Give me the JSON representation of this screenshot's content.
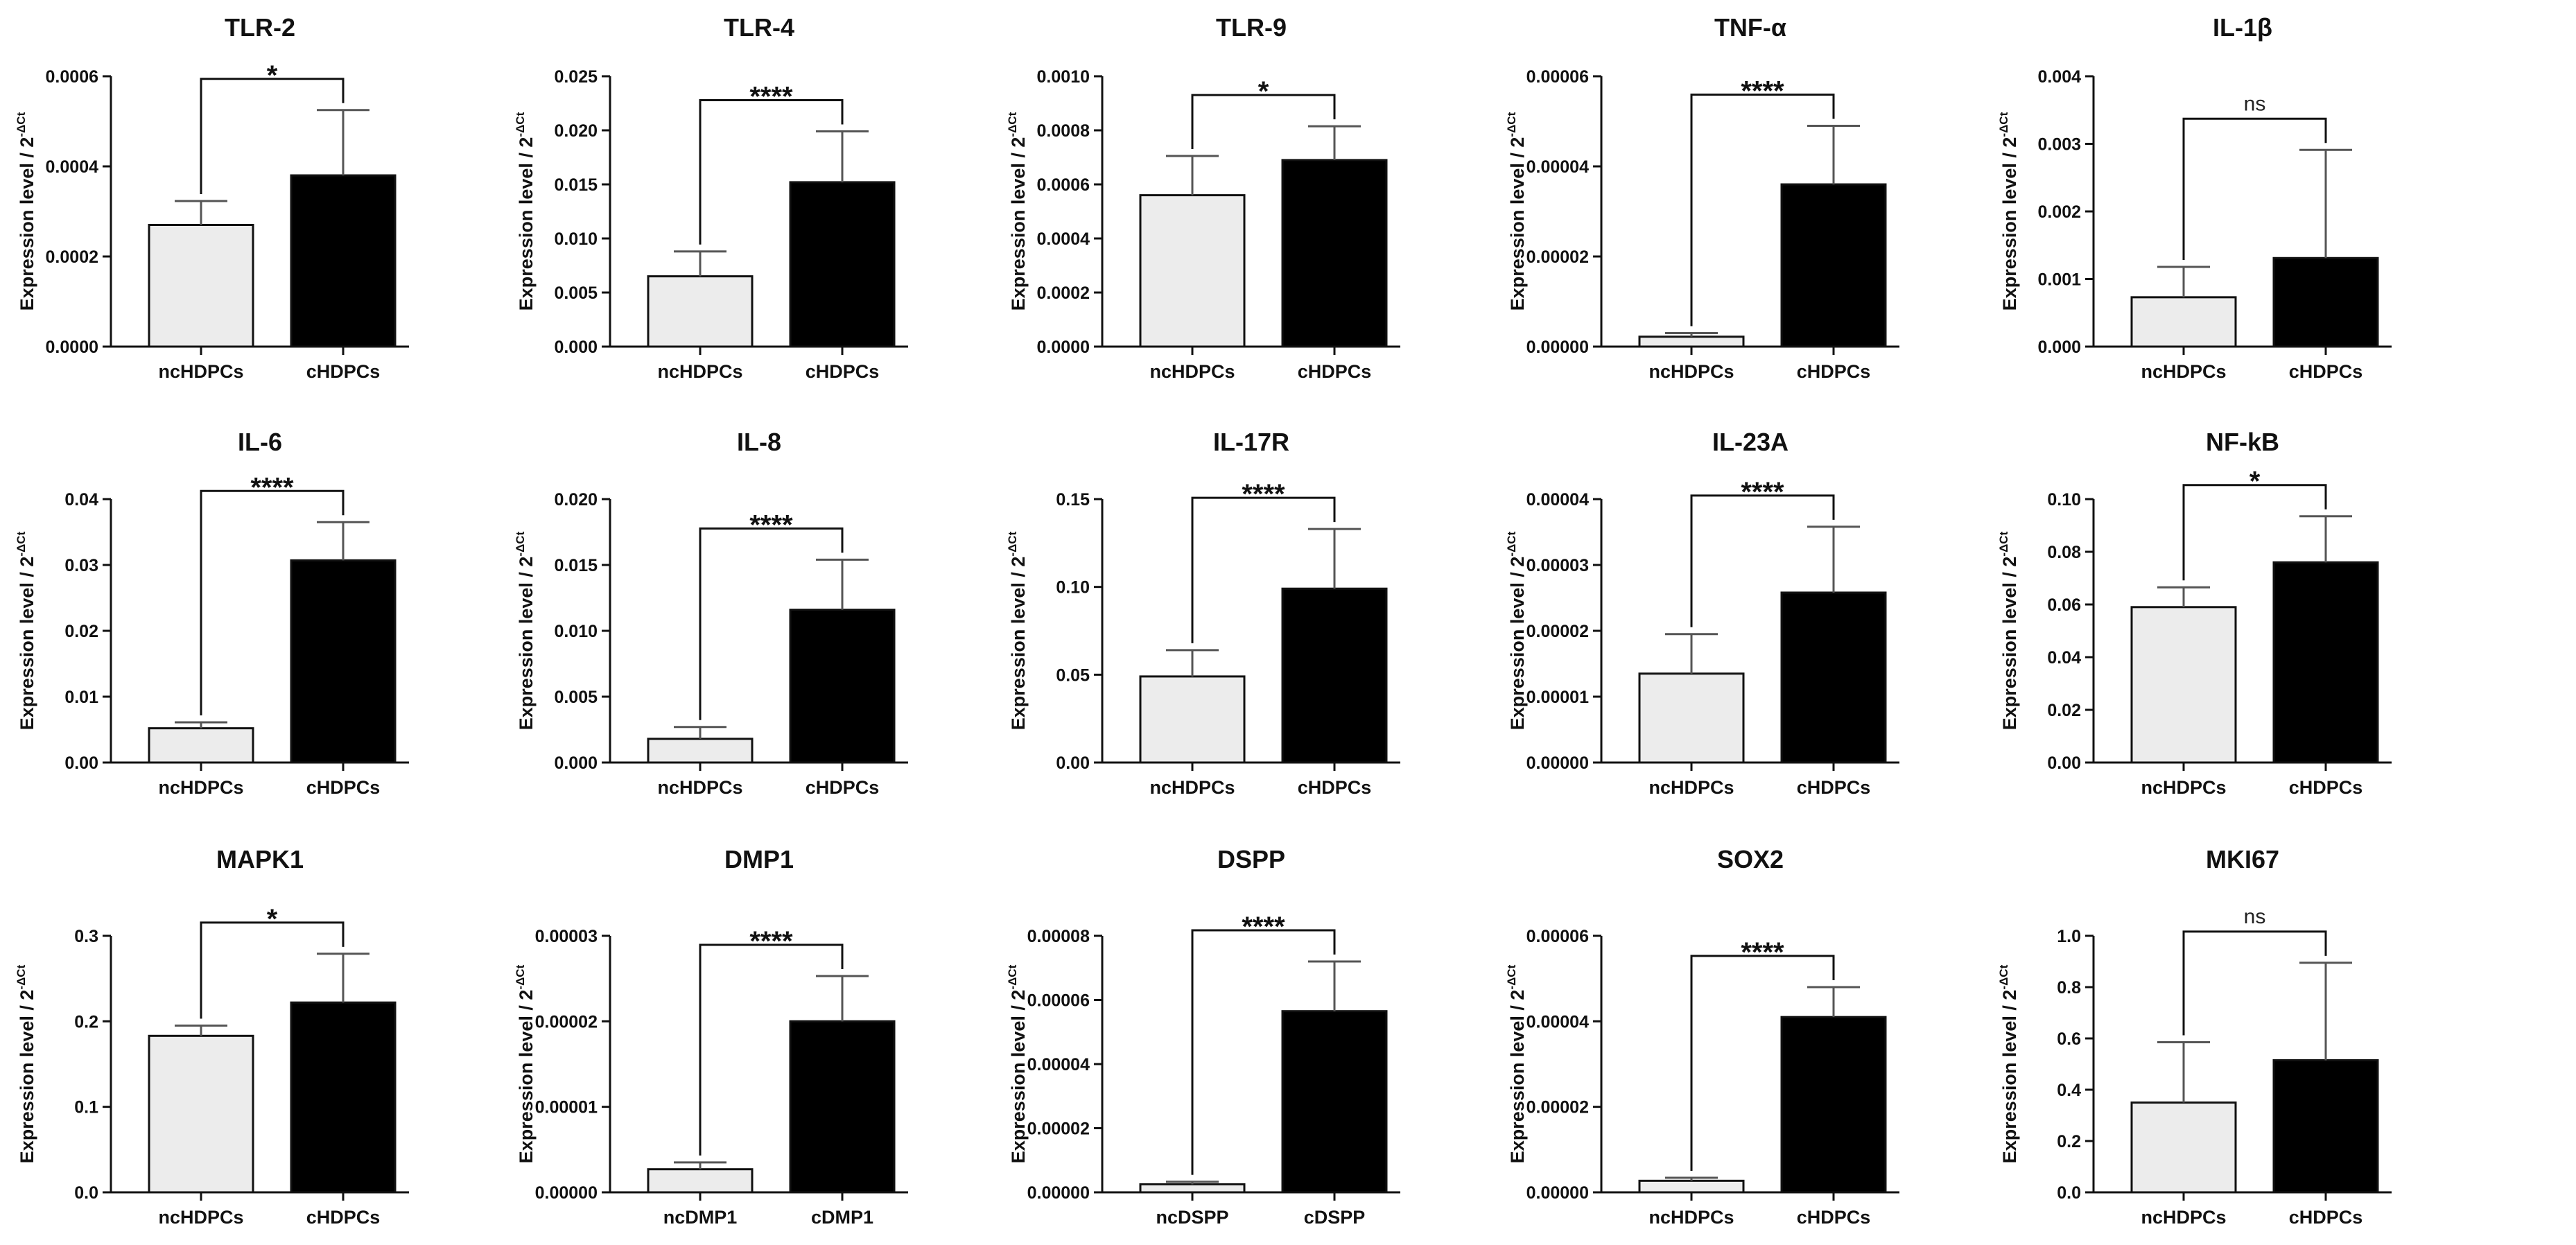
{
  "figure": {
    "ylabel_prefix": "Expression level / 2",
    "ylabel_exponent": "-ΔCt",
    "colors": {
      "control": "#ececec",
      "case": "#000000",
      "axis": "#111111"
    }
  },
  "chart_data": [
    {
      "type": "bar",
      "title": "TLR-2",
      "categories": [
        "ncHDPCs",
        "cHDPCs"
      ],
      "values": [
        0.00027,
        0.00038
      ],
      "errors": [
        5.3e-05,
        0.000145
      ],
      "yticks": [
        "0.0000",
        "0.0002",
        "0.0004",
        "0.0006"
      ],
      "ylim": [
        0,
        0.0006
      ],
      "significance": "*",
      "ylabel": "Expression level / 2-ΔCt"
    },
    {
      "type": "bar",
      "title": "TLR-4",
      "categories": [
        "ncHDPCs",
        "cHDPCs"
      ],
      "values": [
        0.0065,
        0.0152
      ],
      "errors": [
        0.0023,
        0.0047
      ],
      "yticks": [
        "0.000",
        "0.005",
        "0.010",
        "0.015",
        "0.020",
        "0.025"
      ],
      "ylim": [
        0,
        0.025
      ],
      "significance": "****",
      "ylabel": "Expression level / 2-ΔCt"
    },
    {
      "type": "bar",
      "title": "TLR-9",
      "categories": [
        "ncHDPCs",
        "cHDPCs"
      ],
      "values": [
        0.00056,
        0.00069
      ],
      "errors": [
        0.000145,
        0.000125
      ],
      "yticks": [
        "0.0000",
        "0.0002",
        "0.0004",
        "0.0006",
        "0.0008",
        "0.0010"
      ],
      "ylim": [
        0,
        0.001
      ],
      "significance": "*",
      "ylabel": "Expression level / 2-ΔCt"
    },
    {
      "type": "bar",
      "title": "TNF-α",
      "categories": [
        "ncHDPCs",
        "cHDPCs"
      ],
      "values": [
        2.2e-06,
        3.6e-05
      ],
      "errors": [
        8e-07,
        1.3e-05
      ],
      "yticks": [
        "0.00000",
        "0.00002",
        "0.00004",
        "0.00006"
      ],
      "ylim": [
        0,
        6e-05
      ],
      "significance": "****",
      "ylabel": "Expression level / 2-ΔCt"
    },
    {
      "type": "bar",
      "title": "IL-1β",
      "categories": [
        "ncHDPCs",
        "cHDPCs"
      ],
      "values": [
        0.00073,
        0.00131
      ],
      "errors": [
        0.00045,
        0.0016
      ],
      "yticks": [
        "0.000",
        "0.001",
        "0.002",
        "0.003",
        "0.004"
      ],
      "ylim": [
        0,
        0.004
      ],
      "significance": "ns",
      "ylabel": "Expression level / 2-ΔCt"
    },
    {
      "type": "bar",
      "title": "IL-6",
      "categories": [
        "ncHDPCs",
        "cHDPCs"
      ],
      "values": [
        0.0052,
        0.0307
      ],
      "errors": [
        0.0009,
        0.0058
      ],
      "yticks": [
        "0.00",
        "0.01",
        "0.02",
        "0.03",
        "0.04"
      ],
      "ylim": [
        0,
        0.04
      ],
      "significance": "****",
      "ylabel": "Expression level / 2-ΔCt"
    },
    {
      "type": "bar",
      "title": "IL-8",
      "categories": [
        "ncHDPCs",
        "cHDPCs"
      ],
      "values": [
        0.0018,
        0.0116
      ],
      "errors": [
        0.0009,
        0.0038
      ],
      "yticks": [
        "0.000",
        "0.005",
        "0.010",
        "0.015",
        "0.020"
      ],
      "ylim": [
        0,
        0.02
      ],
      "significance": "****",
      "ylabel": "Expression level / 2-ΔCt"
    },
    {
      "type": "bar",
      "title": "IL-17R",
      "categories": [
        "ncHDPCs",
        "cHDPCs"
      ],
      "values": [
        0.049,
        0.099
      ],
      "errors": [
        0.015,
        0.034
      ],
      "yticks": [
        "0.00",
        "0.05",
        "0.10",
        "0.15"
      ],
      "ylim": [
        0,
        0.15
      ],
      "significance": "****",
      "ylabel": "Expression level / 2-ΔCt"
    },
    {
      "type": "bar",
      "title": "IL-23A",
      "categories": [
        "ncHDPCs",
        "cHDPCs"
      ],
      "values": [
        1.35e-05,
        2.58e-05
      ],
      "errors": [
        6e-06,
        1e-05
      ],
      "yticks": [
        "0.00000",
        "0.00001",
        "0.00002",
        "0.00003",
        "0.00004"
      ],
      "ylim": [
        0,
        4e-05
      ],
      "significance": "****",
      "ylabel": "Expression level / 2-ΔCt"
    },
    {
      "type": "bar",
      "title": "NF-kB",
      "categories": [
        "ncHDPCs",
        "cHDPCs"
      ],
      "values": [
        0.059,
        0.076
      ],
      "errors": [
        0.0075,
        0.0175
      ],
      "yticks": [
        "0.00",
        "0.02",
        "0.04",
        "0.06",
        "0.08",
        "0.10"
      ],
      "ylim": [
        0,
        0.1
      ],
      "significance": "*",
      "ylabel": "Expression level / 2-ΔCt"
    },
    {
      "type": "bar",
      "title": "MAPK1",
      "categories": [
        "ncHDPCs",
        "cHDPCs"
      ],
      "values": [
        0.183,
        0.222
      ],
      "errors": [
        0.012,
        0.057
      ],
      "yticks": [
        "0.0",
        "0.1",
        "0.2",
        "0.3"
      ],
      "ylim": [
        0,
        0.3
      ],
      "significance": "*",
      "ylabel": "Expression level / 2-ΔCt"
    },
    {
      "type": "bar",
      "title": "DMP1",
      "categories": [
        "ncDMP1",
        "cDMP1"
      ],
      "values": [
        2.7e-06,
        2e-05
      ],
      "errors": [
        8e-07,
        5.3e-06
      ],
      "yticks": [
        "0.00000",
        "0.00001",
        "0.00002",
        "0.00003"
      ],
      "ylim": [
        0,
        3e-05
      ],
      "significance": "****",
      "ylabel": "Expression level / 2-ΔCt"
    },
    {
      "type": "bar",
      "title": "DSPP",
      "categories": [
        "ncDSPP",
        "cDSPP"
      ],
      "values": [
        2.5e-06,
        5.65e-05
      ],
      "errors": [
        8e-07,
        1.55e-05
      ],
      "yticks": [
        "0.00000",
        "0.00002",
        "0.00004",
        "0.00006",
        "0.00008"
      ],
      "ylim": [
        0,
        8e-05
      ],
      "significance": "****",
      "ylabel": "Expression level / 2-ΔCt"
    },
    {
      "type": "bar",
      "title": "SOX2",
      "categories": [
        "ncHDPCs",
        "cHDPCs"
      ],
      "values": [
        2.7e-06,
        4.1e-05
      ],
      "errors": [
        7e-07,
        7e-06
      ],
      "yticks": [
        "0.00000",
        "0.00002",
        "0.00004",
        "0.00006"
      ],
      "ylim": [
        0,
        6e-05
      ],
      "significance": "****",
      "ylabel": "Expression level / 2-ΔCt"
    },
    {
      "type": "bar",
      "title": "MKI67",
      "categories": [
        "ncHDPCs",
        "cHDPCs"
      ],
      "values": [
        0.35,
        0.515
      ],
      "errors": [
        0.235,
        0.38
      ],
      "yticks": [
        "0.0",
        "0.2",
        "0.4",
        "0.6",
        "0.8",
        "1.0"
      ],
      "ylim": [
        0,
        1.0
      ],
      "significance": "ns",
      "ylabel": "Expression level / 2-ΔCt"
    }
  ]
}
